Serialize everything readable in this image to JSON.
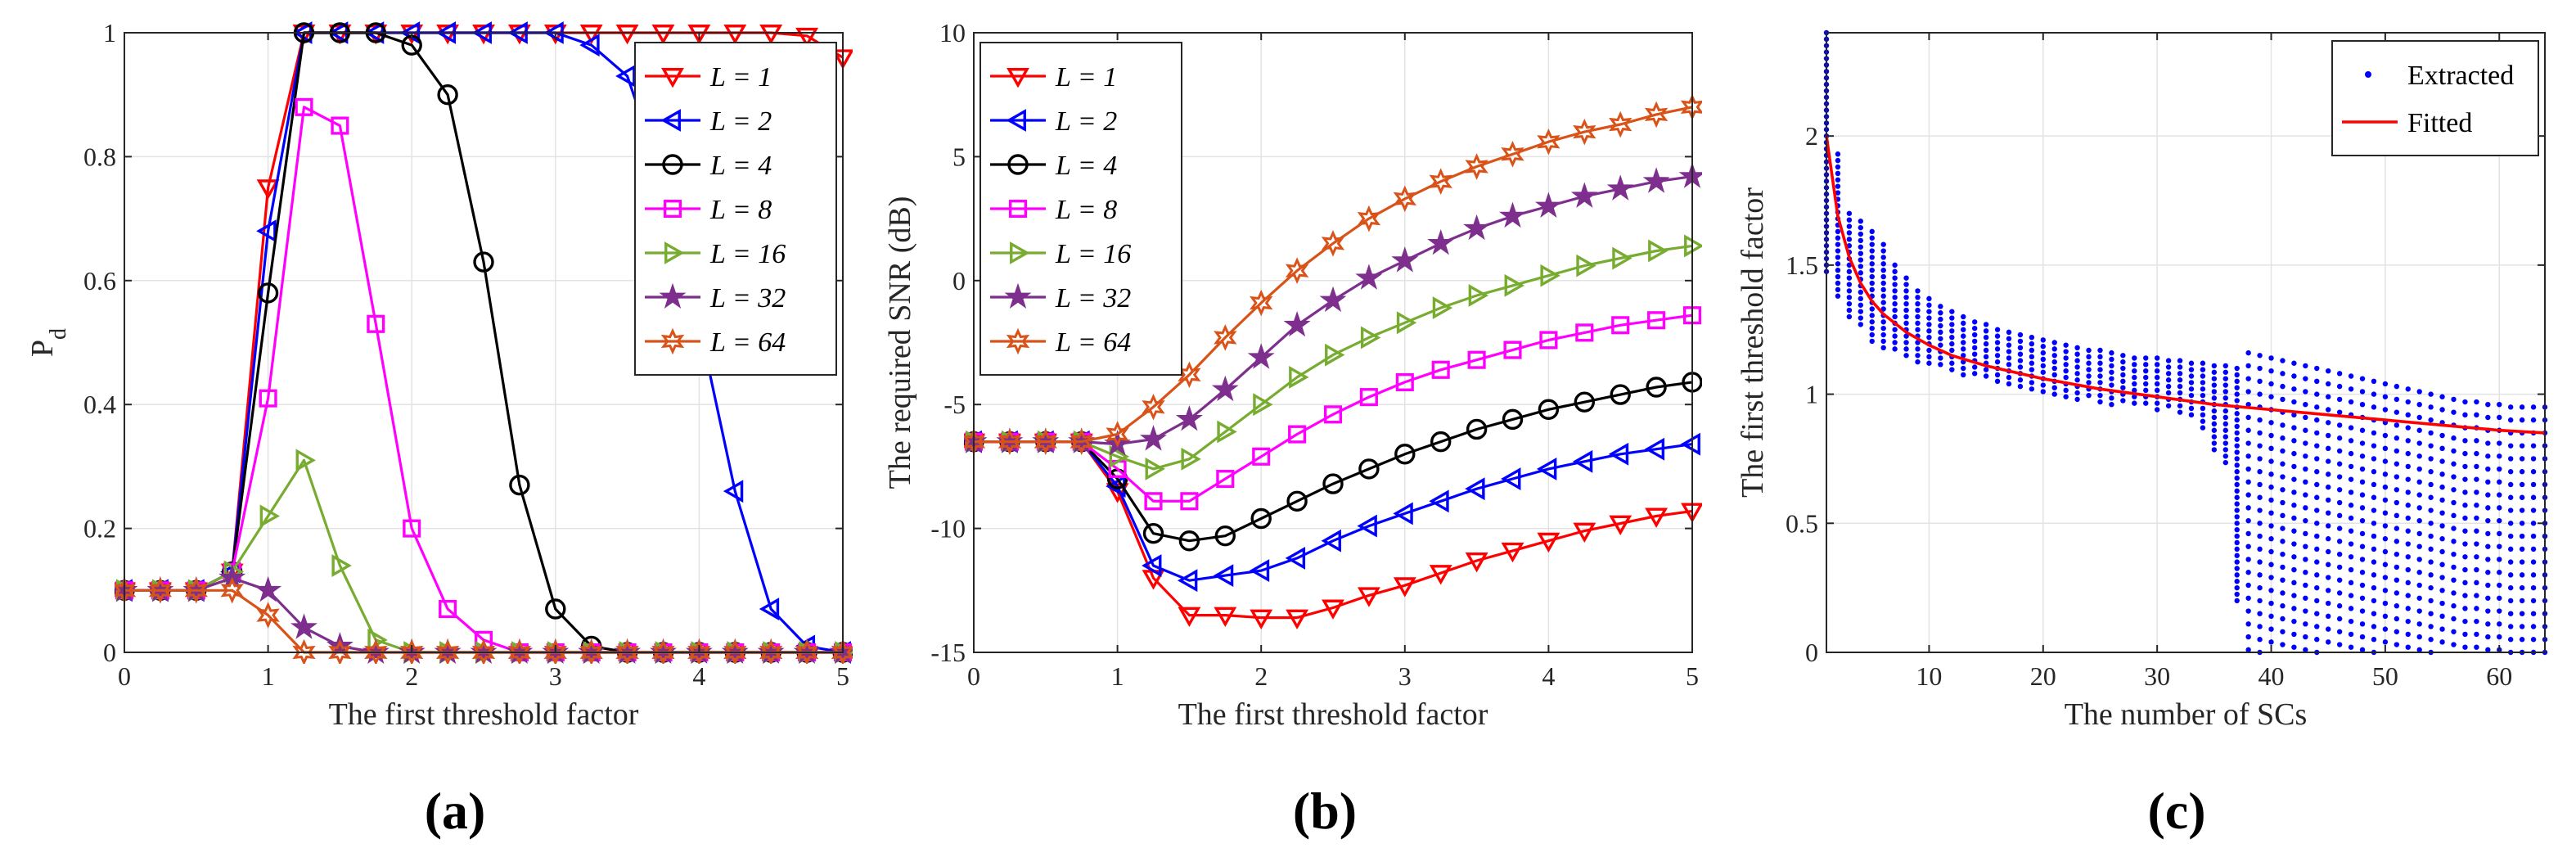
{
  "panels": [
    "(a)",
    "(b)",
    "(c)"
  ],
  "chart_data": [
    {
      "type": "line",
      "xlabel": "The first threshold factor",
      "ylabel": "P",
      "ylabel_sub": "d",
      "xlim": [
        0,
        5
      ],
      "ylim": [
        0,
        1
      ],
      "xticks": [
        0,
        1,
        2,
        3,
        4,
        5
      ],
      "yticks": [
        0,
        0.2,
        0.4,
        0.6,
        0.8,
        1
      ],
      "ytick_labels": [
        "0",
        "0.2",
        "0.4",
        "0.6",
        "0.8",
        "1"
      ],
      "grid": true,
      "legend_position": "top-right",
      "x": [
        0,
        0.25,
        0.5,
        0.75,
        1.0,
        1.25,
        1.5,
        1.75,
        2.0,
        2.25,
        2.5,
        2.75,
        3.0,
        3.25,
        3.5,
        3.75,
        4.0,
        4.25,
        4.5,
        4.75,
        5.0
      ],
      "series": [
        {
          "name": "L = 1",
          "color": "#ff0000",
          "marker": "triangle-down",
          "values": [
            0.1,
            0.1,
            0.1,
            0.13,
            0.75,
            1.0,
            1.0,
            1.0,
            1.0,
            1.0,
            1.0,
            1.0,
            1.0,
            1.0,
            1.0,
            1.0,
            1.0,
            1.0,
            1.0,
            0.995,
            0.96
          ]
        },
        {
          "name": "L = 2",
          "color": "#0000ff",
          "marker": "triangle-left",
          "values": [
            0.1,
            0.1,
            0.1,
            0.13,
            0.68,
            1.0,
            1.0,
            1.0,
            1.0,
            1.0,
            1.0,
            1.0,
            1.0,
            0.98,
            0.93,
            0.76,
            0.53,
            0.26,
            0.07,
            0.01,
            0.0
          ]
        },
        {
          "name": "L = 4",
          "color": "#000000",
          "marker": "circle",
          "values": [
            0.1,
            0.1,
            0.1,
            0.13,
            0.58,
            1.0,
            1.0,
            1.0,
            0.98,
            0.9,
            0.63,
            0.27,
            0.07,
            0.01,
            0.0,
            0.0,
            0.0,
            0.0,
            0.0,
            0.0,
            0.0
          ]
        },
        {
          "name": "L = 8",
          "color": "#ff00ff",
          "marker": "square",
          "values": [
            0.1,
            0.1,
            0.1,
            0.13,
            0.41,
            0.88,
            0.85,
            0.53,
            0.2,
            0.07,
            0.02,
            0.0,
            0.0,
            0.0,
            0.0,
            0.0,
            0.0,
            0.0,
            0.0,
            0.0,
            0.0
          ]
        },
        {
          "name": "L = 16",
          "color": "#77ac30",
          "marker": "triangle-right",
          "values": [
            0.1,
            0.1,
            0.1,
            0.13,
            0.22,
            0.31,
            0.14,
            0.02,
            0.0,
            0.0,
            0.0,
            0.0,
            0.0,
            0.0,
            0.0,
            0.0,
            0.0,
            0.0,
            0.0,
            0.0,
            0.0
          ]
        },
        {
          "name": "L = 32",
          "color": "#7e2f8e",
          "marker": "star",
          "values": [
            0.1,
            0.1,
            0.1,
            0.12,
            0.1,
            0.04,
            0.01,
            0.0,
            0.0,
            0.0,
            0.0,
            0.0,
            0.0,
            0.0,
            0.0,
            0.0,
            0.0,
            0.0,
            0.0,
            0.0,
            0.0
          ]
        },
        {
          "name": "L = 64",
          "color": "#d95319",
          "marker": "hexagram",
          "values": [
            0.1,
            0.1,
            0.1,
            0.1,
            0.06,
            0.0,
            0.0,
            0.0,
            0.0,
            0.0,
            0.0,
            0.0,
            0.0,
            0.0,
            0.0,
            0.0,
            0.0,
            0.0,
            0.0,
            0.0,
            0.0
          ]
        }
      ]
    },
    {
      "type": "line",
      "xlabel": "The first threshold factor",
      "ylabel": "The required SNR (dB)",
      "xlim": [
        0,
        5
      ],
      "ylim": [
        -15,
        10
      ],
      "xticks": [
        0,
        1,
        2,
        3,
        4,
        5
      ],
      "yticks": [
        -15,
        -10,
        -5,
        0,
        5,
        10
      ],
      "ytick_labels": [
        "-15",
        "-10",
        "-5",
        "0",
        "5",
        "10"
      ],
      "grid": true,
      "legend_position": "top-left",
      "x": [
        0,
        0.25,
        0.5,
        0.75,
        1.0,
        1.25,
        1.5,
        1.75,
        2.0,
        2.25,
        2.5,
        2.75,
        3.0,
        3.25,
        3.5,
        3.75,
        4.0,
        4.25,
        4.5,
        4.75,
        5.0
      ],
      "series": [
        {
          "name": "L = 1",
          "color": "#ff0000",
          "marker": "triangle-down",
          "values": [
            -6.5,
            -6.5,
            -6.5,
            -6.5,
            -8.5,
            -12,
            -13.5,
            -13.5,
            -13.6,
            -13.6,
            -13.2,
            -12.7,
            -12.3,
            -11.8,
            -11.3,
            -10.9,
            -10.5,
            -10.1,
            -9.8,
            -9.5,
            -9.3
          ]
        },
        {
          "name": "L = 2",
          "color": "#0000ff",
          "marker": "triangle-left",
          "values": [
            -6.5,
            -6.5,
            -6.5,
            -6.5,
            -8.3,
            -11.5,
            -12.1,
            -11.9,
            -11.7,
            -11.2,
            -10.5,
            -9.9,
            -9.4,
            -8.9,
            -8.4,
            -8.0,
            -7.6,
            -7.3,
            -7.0,
            -6.8,
            -6.6
          ]
        },
        {
          "name": "L = 4",
          "color": "#000000",
          "marker": "circle",
          "values": [
            -6.5,
            -6.5,
            -6.5,
            -6.5,
            -8.0,
            -10.2,
            -10.5,
            -10.3,
            -9.6,
            -8.9,
            -8.2,
            -7.6,
            -7.0,
            -6.5,
            -6.0,
            -5.6,
            -5.2,
            -4.9,
            -4.6,
            -4.3,
            -4.1
          ]
        },
        {
          "name": "L = 8",
          "color": "#ff00ff",
          "marker": "square",
          "values": [
            -6.5,
            -6.5,
            -6.5,
            -6.5,
            -7.6,
            -8.9,
            -8.9,
            -8.0,
            -7.1,
            -6.2,
            -5.4,
            -4.7,
            -4.1,
            -3.6,
            -3.2,
            -2.8,
            -2.4,
            -2.1,
            -1.8,
            -1.6,
            -1.4
          ]
        },
        {
          "name": "L = 16",
          "color": "#77ac30",
          "marker": "triangle-right",
          "values": [
            -6.5,
            -6.5,
            -6.5,
            -6.5,
            -7.1,
            -7.6,
            -7.2,
            -6.1,
            -5.0,
            -3.9,
            -3.0,
            -2.3,
            -1.7,
            -1.1,
            -0.6,
            -0.2,
            0.2,
            0.6,
            0.9,
            1.2,
            1.4
          ]
        },
        {
          "name": "L = 32",
          "color": "#7e2f8e",
          "marker": "star",
          "values": [
            -6.5,
            -6.5,
            -6.5,
            -6.5,
            -6.6,
            -6.4,
            -5.6,
            -4.4,
            -3.1,
            -1.8,
            -0.8,
            0.1,
            0.8,
            1.5,
            2.1,
            2.6,
            3.0,
            3.4,
            3.7,
            4.0,
            4.2
          ]
        },
        {
          "name": "L = 64",
          "color": "#d95319",
          "marker": "hexagram",
          "values": [
            -6.5,
            -6.5,
            -6.5,
            -6.5,
            -6.2,
            -5.1,
            -3.8,
            -2.3,
            -0.9,
            0.4,
            1.5,
            2.5,
            3.3,
            4.0,
            4.6,
            5.1,
            5.6,
            6.0,
            6.3,
            6.7,
            7.0
          ]
        }
      ]
    },
    {
      "type": "scatter",
      "xlabel": "The number of SCs",
      "ylabel": "The first threshold factor",
      "xlim": [
        1,
        64
      ],
      "ylim": [
        0,
        2.4
      ],
      "xticks": [
        10,
        20,
        30,
        40,
        50,
        60
      ],
      "yticks": [
        0,
        0.5,
        1,
        1.5,
        2
      ],
      "ytick_labels": [
        "0",
        "0.5",
        "1",
        "1.5",
        "2"
      ],
      "grid": true,
      "legend_position": "top-right",
      "series": [
        {
          "name": "Extracted",
          "color": "#0000ff",
          "kind": "points",
          "columns": [
            {
              "x": 1,
              "ymin": 1.46,
              "ymax": 2.4
            },
            {
              "x": 2,
              "ymin": 1.37,
              "ymax": 1.93
            },
            {
              "x": 3,
              "ymin": 1.3,
              "ymax": 1.7
            },
            {
              "x": 4,
              "ymin": 1.26,
              "ymax": 1.67
            },
            {
              "x": 5,
              "ymin": 1.2,
              "ymax": 1.63
            },
            {
              "x": 6,
              "ymin": 1.18,
              "ymax": 1.58
            },
            {
              "x": 7,
              "ymin": 1.16,
              "ymax": 1.5
            },
            {
              "x": 8,
              "ymin": 1.14,
              "ymax": 1.45
            },
            {
              "x": 9,
              "ymin": 1.12,
              "ymax": 1.4
            },
            {
              "x": 10,
              "ymin": 1.11,
              "ymax": 1.37
            },
            {
              "x": 11,
              "ymin": 1.1,
              "ymax": 1.34
            },
            {
              "x": 12,
              "ymin": 1.08,
              "ymax": 1.32
            },
            {
              "x": 13,
              "ymin": 1.07,
              "ymax": 1.3
            },
            {
              "x": 14,
              "ymin": 1.06,
              "ymax": 1.28
            },
            {
              "x": 15,
              "ymin": 1.05,
              "ymax": 1.27
            },
            {
              "x": 16,
              "ymin": 1.04,
              "ymax": 1.25
            },
            {
              "x": 17,
              "ymin": 1.03,
              "ymax": 1.24
            },
            {
              "x": 18,
              "ymin": 1.02,
              "ymax": 1.23
            },
            {
              "x": 19,
              "ymin": 1.01,
              "ymax": 1.22
            },
            {
              "x": 20,
              "ymin": 1.0,
              "ymax": 1.21
            },
            {
              "x": 21,
              "ymin": 1.0,
              "ymax": 1.2
            },
            {
              "x": 22,
              "ymin": 0.99,
              "ymax": 1.19
            },
            {
              "x": 23,
              "ymin": 0.98,
              "ymax": 1.18
            },
            {
              "x": 24,
              "ymin": 0.98,
              "ymax": 1.17
            },
            {
              "x": 25,
              "ymin": 0.97,
              "ymax": 1.17
            },
            {
              "x": 26,
              "ymin": 0.96,
              "ymax": 1.16
            },
            {
              "x": 27,
              "ymin": 0.96,
              "ymax": 1.15
            },
            {
              "x": 28,
              "ymin": 0.95,
              "ymax": 1.14
            },
            {
              "x": 29,
              "ymin": 0.95,
              "ymax": 1.14
            },
            {
              "x": 30,
              "ymin": 0.94,
              "ymax": 1.14
            },
            {
              "x": 31,
              "ymin": 0.94,
              "ymax": 1.13
            },
            {
              "x": 32,
              "ymin": 0.93,
              "ymax": 1.13
            },
            {
              "x": 33,
              "ymin": 0.9,
              "ymax": 1.12
            },
            {
              "x": 34,
              "ymin": 0.85,
              "ymax": 1.12
            },
            {
              "x": 35,
              "ymin": 0.77,
              "ymax": 1.11
            },
            {
              "x": 36,
              "ymin": 0.72,
              "ymax": 1.11
            },
            {
              "x": 37,
              "ymin": 0.18,
              "ymax": 1.1
            },
            {
              "x": 38,
              "ymin": 0.0,
              "ymax": 1.16
            },
            {
              "x": 39,
              "ymin": 0.0,
              "ymax": 1.15
            },
            {
              "x": 40,
              "ymin": 0.0,
              "ymax": 1.14
            },
            {
              "x": 41,
              "ymin": 0.0,
              "ymax": 1.13
            },
            {
              "x": 42,
              "ymin": 0.0,
              "ymax": 1.12
            },
            {
              "x": 43,
              "ymin": 0.0,
              "ymax": 1.11
            },
            {
              "x": 44,
              "ymin": 0.0,
              "ymax": 1.1
            },
            {
              "x": 45,
              "ymin": 0.0,
              "ymax": 1.09
            },
            {
              "x": 46,
              "ymin": 0.0,
              "ymax": 1.08
            },
            {
              "x": 47,
              "ymin": 0.0,
              "ymax": 1.07
            },
            {
              "x": 48,
              "ymin": 0.0,
              "ymax": 1.06
            },
            {
              "x": 49,
              "ymin": 0.0,
              "ymax": 1.05
            },
            {
              "x": 50,
              "ymin": 0.0,
              "ymax": 1.04
            },
            {
              "x": 51,
              "ymin": 0.0,
              "ymax": 1.03
            },
            {
              "x": 52,
              "ymin": 0.0,
              "ymax": 1.02
            },
            {
              "x": 53,
              "ymin": 0.0,
              "ymax": 1.01
            },
            {
              "x": 54,
              "ymin": 0.0,
              "ymax": 1.0
            },
            {
              "x": 55,
              "ymin": 0.0,
              "ymax": 0.99
            },
            {
              "x": 56,
              "ymin": 0.0,
              "ymax": 0.98
            },
            {
              "x": 57,
              "ymin": 0.0,
              "ymax": 0.97
            },
            {
              "x": 58,
              "ymin": 0.0,
              "ymax": 0.97
            },
            {
              "x": 59,
              "ymin": 0.0,
              "ymax": 0.96
            },
            {
              "x": 60,
              "ymin": 0.0,
              "ymax": 0.96
            },
            {
              "x": 61,
              "ymin": 0.0,
              "ymax": 0.95
            },
            {
              "x": 62,
              "ymin": 0.0,
              "ymax": 0.95
            },
            {
              "x": 63,
              "ymin": 0.0,
              "ymax": 0.95
            },
            {
              "x": 64,
              "ymin": 0.0,
              "ymax": 0.95
            }
          ]
        },
        {
          "name": "Fitted",
          "color": "#ff0000",
          "kind": "line",
          "x": [
            1,
            2,
            3,
            4,
            5,
            6,
            8,
            10,
            12,
            15,
            20,
            25,
            30,
            35,
            40,
            45,
            50,
            55,
            60,
            64
          ],
          "values": [
            2.0,
            1.69,
            1.53,
            1.43,
            1.36,
            1.31,
            1.24,
            1.19,
            1.15,
            1.11,
            1.06,
            1.02,
            0.99,
            0.96,
            0.94,
            0.92,
            0.9,
            0.88,
            0.86,
            0.85
          ]
        }
      ]
    }
  ]
}
